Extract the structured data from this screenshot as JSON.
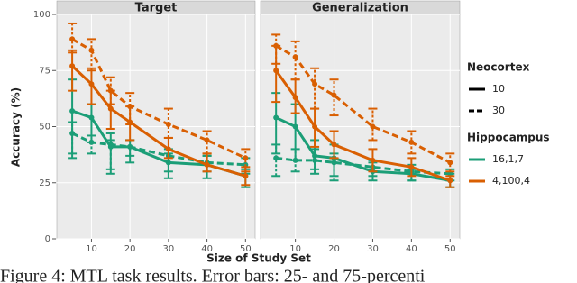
{
  "chart_data": {
    "type": "line",
    "xlabel": "Size of Study Set",
    "ylabel": "Accuracy (%)",
    "caption": "Figure 4: MTL task results. Error bars: 25- and 75-percenti",
    "xlim": [
      1,
      52.5
    ],
    "xticks": [
      10,
      20,
      30,
      40,
      50
    ],
    "ylim": [
      0,
      100
    ],
    "yticks": [
      0,
      25,
      50,
      75,
      100
    ],
    "grid": true,
    "x": [
      5,
      10,
      15,
      20,
      30,
      40,
      50
    ],
    "legend": [
      {
        "title": "Neocortex",
        "entries": [
          {
            "label": "10",
            "dashed": false
          },
          {
            "label": "30",
            "dashed": true
          }
        ]
      },
      {
        "title": "Hippocampus",
        "entries": [
          {
            "label": "16,1,7",
            "color": "#1b9e77"
          },
          {
            "label": "4,100,4",
            "color": "#d95f02"
          }
        ]
      }
    ],
    "panels": [
      {
        "title": "Target",
        "series": [
          {
            "neocortex": "10",
            "hippocampus": "16,1,7",
            "values": [
              57,
              54,
              41,
              41,
              34,
              33,
              28
            ],
            "low": [
              36,
              43,
              29,
              34,
              27,
              27,
              23
            ],
            "high": [
              71,
              60,
              47,
              44,
              38,
              37,
              31
            ]
          },
          {
            "neocortex": "30",
            "hippocampus": "16,1,7",
            "values": [
              47,
              43,
              42,
              41,
              37,
              34,
              33
            ],
            "low": [
              38,
              38,
              31,
              37,
              30,
              30,
              29
            ],
            "high": [
              52,
              46,
              44,
              44,
              40,
              37,
              36
            ]
          },
          {
            "neocortex": "10",
            "hippocampus": "4,100,4",
            "values": [
              77,
              69,
              58,
              52,
              40,
              33,
              28
            ],
            "low": [
              66,
              60,
              49,
              44,
              36,
              30,
              24
            ],
            "high": [
              84,
              76,
              66,
              59,
              45,
              38,
              32
            ]
          },
          {
            "neocortex": "30",
            "hippocampus": "4,100,4",
            "values": [
              89,
              84,
              66,
              59,
              51,
              44,
              36
            ],
            "low": [
              83,
              75,
              60,
              51,
              45,
              38,
              30
            ],
            "high": [
              96,
              89,
              72,
              65,
              58,
              48,
              40
            ]
          }
        ]
      },
      {
        "title": "Generalization",
        "series": [
          {
            "neocortex": "10",
            "hippocampus": "16,1,7",
            "values": [
              54,
              50,
              37,
              36,
              30,
              29,
              26
            ],
            "low": [
              38,
              35,
              29,
              28,
              26,
              26,
              23
            ],
            "high": [
              65,
              60,
              44,
              42,
              34,
              31,
              29
            ]
          },
          {
            "neocortex": "30",
            "hippocampus": "16,1,7",
            "values": [
              36,
              35,
              35,
              34,
              32,
              30,
              29
            ],
            "low": [
              28,
              30,
              31,
              26,
              28,
              26,
              26
            ],
            "high": [
              42,
              40,
              40,
              38,
              35,
              33,
              31
            ]
          },
          {
            "neocortex": "10",
            "hippocampus": "4,100,4",
            "values": [
              75,
              63,
              50,
              42,
              35,
              32,
              26
            ],
            "low": [
              61,
              56,
              41,
              36,
              30,
              28,
              23
            ],
            "high": [
              86,
              71,
              58,
              48,
              40,
              36,
              28
            ]
          },
          {
            "neocortex": "30",
            "hippocampus": "4,100,4",
            "values": [
              86,
              81,
              69,
              64,
              50,
              43,
              34
            ],
            "low": [
              78,
              71,
              58,
              55,
              44,
              38,
              30
            ],
            "high": [
              91,
              88,
              76,
              71,
              58,
              48,
              38
            ]
          }
        ]
      }
    ]
  }
}
